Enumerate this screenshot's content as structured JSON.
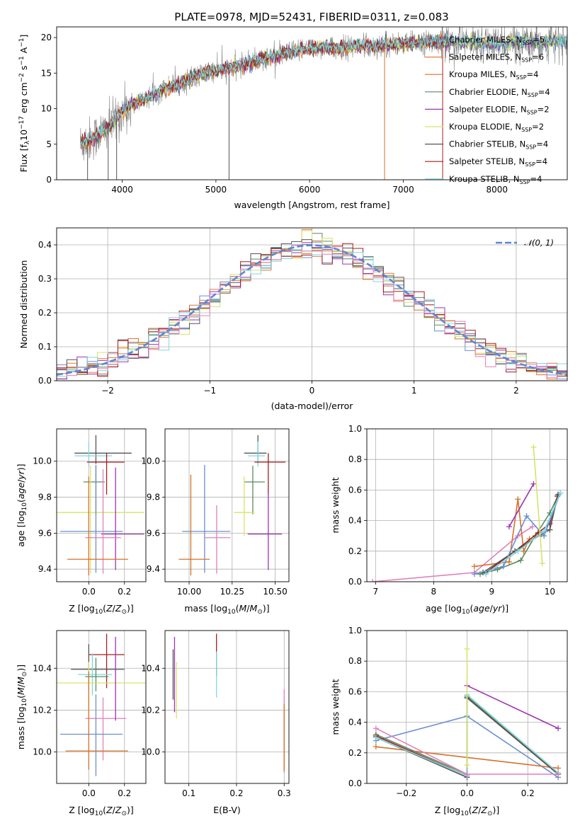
{
  "title": "PLATE=0978, MJD=52431, FIBERID=0311, z=0.083",
  "colors": {
    "chabrier_miles": "#6a8fd0",
    "salpeter_miles": "#e9763a",
    "kroupa_miles": "#d4722a",
    "chabrier_elodie": "#5a8a5e",
    "salpeter_elodie": "#9d35b3",
    "kroupa_elodie": "#d8e36a",
    "chabrier_stelib": "#555555",
    "salpeter_stelib": "#a31e1e",
    "kroupa_stelib": "#7fd8e0",
    "pink": "#e37fbd",
    "normal": "#5b86d6",
    "data": "#808080",
    "grid": "#b0b0b0"
  },
  "chart_data": [
    {
      "type": "line",
      "id": "spectrum",
      "title": "PLATE=0978, MJD=52431, FIBERID=0311, z=0.083",
      "xlabel": "wavelength [Angstrom, rest frame]",
      "ylabel_main": "Flux [f",
      "ylabel_rest": "10",
      "ylabel_exp": "−17",
      "ylabel_units": " erg cm",
      "xlim": [
        3300,
        8750
      ],
      "ylim": [
        0,
        21.5
      ],
      "xticks": [
        4000,
        5000,
        6000,
        7000,
        8000
      ],
      "yticks": [
        0,
        5,
        10,
        15,
        20
      ],
      "grid": false,
      "legend_position": "right",
      "continuum": [
        [
          3550,
          5
        ],
        [
          3700,
          6
        ],
        [
          3800,
          6.8
        ],
        [
          3900,
          8
        ],
        [
          4000,
          9.6
        ],
        [
          4100,
          10.5
        ],
        [
          4200,
          11
        ],
        [
          4300,
          11.8
        ],
        [
          4400,
          12.5
        ],
        [
          4500,
          13
        ],
        [
          4700,
          14
        ],
        [
          4900,
          15
        ],
        [
          5100,
          15.6
        ],
        [
          5300,
          16.2
        ],
        [
          5500,
          17
        ],
        [
          5700,
          17.6
        ],
        [
          5900,
          18.2
        ],
        [
          6100,
          18.6
        ],
        [
          6300,
          18.5
        ],
        [
          6500,
          18.8
        ],
        [
          6700,
          18.8
        ],
        [
          6900,
          19
        ],
        [
          7100,
          19.2
        ],
        [
          7300,
          19.4
        ],
        [
          7500,
          19.5
        ],
        [
          7700,
          19.3
        ],
        [
          7900,
          19.1
        ],
        [
          8100,
          19.0
        ],
        [
          8300,
          19.6
        ],
        [
          8500,
          19.4
        ],
        [
          8700,
          19.5
        ]
      ],
      "legend": [
        {
          "label": "Chabrier MILES, N",
          "sub": "SSP",
          "n": "=5",
          "color": "#6a8fd0"
        },
        {
          "label": "Salpeter MILES, N",
          "sub": "SSP",
          "n": "=6",
          "color": "#e9763a"
        },
        {
          "label": "Kroupa MILES, N",
          "sub": "SSP",
          "n": "=4",
          "color": "#d4722a"
        },
        {
          "label": "Chabrier ELODIE, N",
          "sub": "SSP",
          "n": "=4",
          "color": "#5a8a5e"
        },
        {
          "label": "Salpeter ELODIE, N",
          "sub": "SSP",
          "n": "=2",
          "color": "#9d35b3"
        },
        {
          "label": "Kroupa ELODIE, N",
          "sub": "SSP",
          "n": "=2",
          "color": "#d8e36a"
        },
        {
          "label": "Chabrier STELIB, N",
          "sub": "SSP",
          "n": "=4",
          "color": "#555555"
        },
        {
          "label": "Salpeter STELIB, N",
          "sub": "SSP",
          "n": "=4",
          "color": "#a31e1e"
        },
        {
          "label": "Kroupa STELIB, N",
          "sub": "SSP",
          "n": "=4",
          "color": "#7fd8e0"
        }
      ]
    },
    {
      "type": "line",
      "id": "residuals",
      "xlabel": "(data-model)/error",
      "ylabel": "Normed distribution",
      "xlim": [
        -2.5,
        2.5
      ],
      "ylim": [
        0,
        0.45
      ],
      "xticks": [
        -2,
        -1,
        0,
        1,
        2
      ],
      "yticks": [
        0.0,
        0.1,
        0.2,
        0.3,
        0.4
      ],
      "grid": true,
      "legend": [
        {
          "label": "𝒩(0, 1)",
          "color": "#5b86d6"
        }
      ],
      "legend_position": "top-right"
    },
    {
      "type": "scatter",
      "id": "age_vs_Z",
      "xlabel": "Z [log10(Z/Z⊙)]",
      "ylabel": "age  [log10(age/yr)]",
      "xlim": [
        -0.18,
        0.32
      ],
      "ylim": [
        9.33,
        10.18
      ],
      "xticks": [
        0.0,
        0.2
      ],
      "yticks": [
        9.4,
        9.6,
        9.8,
        10.0
      ],
      "points": [
        {
          "x": 0.04,
          "y": 10.045,
          "xl": 0.12,
          "xh": 0.2,
          "yl": 0.06,
          "yh": 0.1,
          "color": "#555555"
        },
        {
          "x": 0.0,
          "y": 10.03,
          "xl": 0.08,
          "xh": 0.13,
          "yl": 0.06,
          "yh": 0.08,
          "color": "#7fd8e0"
        },
        {
          "x": 0.1,
          "y": 9.995,
          "xl": 0.11,
          "xh": 0.1,
          "yl": 0.18,
          "yh": 0.05,
          "color": "#a31e1e"
        },
        {
          "x": 0.04,
          "y": 9.885,
          "xl": 0.07,
          "xh": 0.05,
          "yl": 0.18,
          "yh": 0.09,
          "color": "#5a8a5e"
        },
        {
          "x": 0.01,
          "y": 9.715,
          "xl": 0.2,
          "xh": 0.3,
          "yl": 0.34,
          "yh": 0.26,
          "color": "#d8e36a"
        },
        {
          "x": 0.04,
          "y": 9.61,
          "xl": 0.2,
          "xh": 0.15,
          "yl": 0.23,
          "yh": 0.37,
          "color": "#6a8fd0"
        },
        {
          "x": 0.15,
          "y": 9.595,
          "xl": 0.08,
          "xh": 0.16,
          "yl": 0.2,
          "yh": 0.37,
          "color": "#9d35b3"
        },
        {
          "x": 0.08,
          "y": 9.575,
          "xl": 0.1,
          "xh": 0.1,
          "yl": 0.2,
          "yh": 0.38,
          "color": "#e37fbd"
        },
        {
          "x": 0.0,
          "y": 9.455,
          "xl": 0.12,
          "xh": 0.22,
          "yl": 0.09,
          "yh": 0.46,
          "color": "#d4722a"
        }
      ]
    },
    {
      "type": "scatter",
      "id": "age_vs_mass",
      "xlabel": "mass [log10(M/M⊙)]",
      "xlim": [
        9.86,
        10.58
      ],
      "ylim": [
        9.33,
        10.18
      ],
      "xticks": [
        10.0,
        10.25,
        10.5
      ],
      "yticks": [
        9.4,
        9.6,
        9.8,
        10.0
      ],
      "points": [
        {
          "x": 10.4,
          "y": 10.045,
          "xl": 0.08,
          "xh": 0.05,
          "yl": 0.06,
          "yh": 0.1,
          "color": "#555555"
        },
        {
          "x": 10.4,
          "y": 10.03,
          "xl": 0.06,
          "xh": 0.04,
          "yl": 0.06,
          "yh": 0.08,
          "color": "#7fd8e0"
        },
        {
          "x": 10.46,
          "y": 9.995,
          "xl": 0.08,
          "xh": 0.1,
          "yl": 0.18,
          "yh": 0.05,
          "color": "#a31e1e"
        },
        {
          "x": 10.37,
          "y": 9.885,
          "xl": 0.05,
          "xh": 0.07,
          "yl": 0.18,
          "yh": 0.09,
          "color": "#5a8a5e"
        },
        {
          "x": 10.32,
          "y": 9.715,
          "xl": 0.06,
          "xh": 0.06,
          "yl": 0.13,
          "yh": 0.2,
          "color": "#d8e36a"
        },
        {
          "x": 10.09,
          "y": 9.61,
          "xl": 0.13,
          "xh": 0.15,
          "yl": 0.23,
          "yh": 0.37,
          "color": "#6a8fd0"
        },
        {
          "x": 10.46,
          "y": 9.595,
          "xl": 0.12,
          "xh": 0.08,
          "yl": 0.2,
          "yh": 0.23,
          "color": "#9d35b3"
        },
        {
          "x": 10.16,
          "y": 9.575,
          "xl": 0.07,
          "xh": 0.08,
          "yl": 0.2,
          "yh": 0.18,
          "color": "#e37fbd"
        },
        {
          "x": 10.01,
          "y": 9.455,
          "xl": 0.07,
          "xh": 0.11,
          "yl": 0.09,
          "yh": 0.47,
          "color": "#d4722a"
        }
      ]
    },
    {
      "type": "line",
      "id": "weight_vs_age",
      "xlabel": "age  [log10(age/yr)]",
      "ylabel": "mass weight",
      "xlim": [
        6.85,
        10.3
      ],
      "ylim": [
        0,
        1.0
      ],
      "xticks": [
        7,
        8,
        9,
        10
      ],
      "yticks": [
        0.0,
        0.2,
        0.4,
        0.6,
        0.8,
        1.0
      ],
      "grid": true,
      "series": [
        {
          "color": "#e37fbd",
          "points": [
            [
              6.95,
              0.0
            ],
            [
              8.7,
              0.06
            ],
            [
              9.45,
              0.3
            ],
            [
              9.7,
              0.36
            ]
          ]
        },
        {
          "color": "#d4722a",
          "points": [
            [
              8.7,
              0.1
            ],
            [
              9.3,
              0.13
            ],
            [
              9.45,
              0.54
            ],
            [
              9.55,
              0.2
            ],
            [
              9.65,
              0.28
            ]
          ]
        },
        {
          "color": "#5a8a5e",
          "points": [
            [
              8.8,
              0.05
            ],
            [
              9.1,
              0.08
            ],
            [
              9.5,
              0.14
            ],
            [
              9.75,
              0.3
            ],
            [
              10.0,
              0.45
            ],
            [
              10.15,
              0.57
            ]
          ]
        },
        {
          "color": "#a31e1e",
          "points": [
            [
              8.9,
              0.06
            ],
            [
              9.4,
              0.2
            ],
            [
              9.8,
              0.32
            ],
            [
              10.0,
              0.38
            ],
            [
              10.13,
              0.56
            ]
          ]
        },
        {
          "color": "#555555",
          "points": [
            [
              8.85,
              0.06
            ],
            [
              9.4,
              0.2
            ],
            [
              9.85,
              0.31
            ],
            [
              10.0,
              0.34
            ],
            [
              10.14,
              0.57
            ]
          ]
        },
        {
          "color": "#6a8fd0",
          "points": [
            [
              8.7,
              0.05
            ],
            [
              9.2,
              0.1
            ],
            [
              9.6,
              0.43
            ],
            [
              9.9,
              0.3
            ],
            [
              10.18,
              0.58
            ]
          ]
        },
        {
          "color": "#7fd8e0",
          "points": [
            [
              8.9,
              0.05
            ],
            [
              9.45,
              0.2
            ],
            [
              9.9,
              0.33
            ],
            [
              10.18,
              0.58
            ]
          ]
        },
        {
          "color": "#9d35b3",
          "points": [
            [
              9.3,
              0.36
            ],
            [
              9.72,
              0.64
            ]
          ]
        },
        {
          "color": "#d8e36a",
          "points": [
            [
              9.72,
              0.88
            ],
            [
              9.87,
              0.12
            ]
          ]
        }
      ]
    },
    {
      "type": "scatter",
      "id": "mass_vs_Z",
      "xlabel": "Z [log10(Z/Z⊙)]",
      "ylabel": "mass [log10(M/M⊙)]",
      "xlim": [
        -0.18,
        0.32
      ],
      "ylim": [
        9.85,
        10.58
      ],
      "xticks": [
        0.0,
        0.2
      ],
      "yticks": [
        10.0,
        10.2,
        10.4
      ],
      "points": [
        {
          "x": 0.1,
          "y": 10.465,
          "xl": 0.1,
          "xh": 0.1,
          "yl": 0.16,
          "yh": 0.1,
          "color": "#a31e1e"
        },
        {
          "x": 0.0,
          "y": 10.395,
          "xl": 0.1,
          "xh": 0.2,
          "yl": 0.1,
          "yh": 0.12,
          "color": "#555555"
        },
        {
          "x": 0.02,
          "y": 10.37,
          "xl": 0.08,
          "xh": 0.11,
          "yl": 0.1,
          "yh": 0.1,
          "color": "#7fd8e0"
        },
        {
          "x": 0.04,
          "y": 10.36,
          "xl": 0.06,
          "xh": 0.07,
          "yl": 0.07,
          "yh": 0.09,
          "color": "#5a8a5e"
        },
        {
          "x": 0.0,
          "y": 10.33,
          "xl": 0.2,
          "xh": 0.32,
          "yl": 0.17,
          "yh": 0.1,
          "color": "#d8e36a"
        },
        {
          "x": 0.08,
          "y": 10.16,
          "xl": 0.1,
          "xh": 0.13,
          "yl": 0.2,
          "yh": 0.1,
          "color": "#e37fbd"
        },
        {
          "x": 0.04,
          "y": 10.085,
          "xl": 0.2,
          "xh": 0.15,
          "yl": 0.2,
          "yh": 0.19,
          "color": "#6a8fd0"
        },
        {
          "x": 0.0,
          "y": 10.005,
          "xl": 0.13,
          "xh": 0.22,
          "yl": 0.09,
          "yh": 0.38,
          "color": "#d4722a"
        },
        {
          "x": 0.15,
          "y": 10.35,
          "xl": 0.0,
          "xh": 0.0,
          "yl": 0.2,
          "yh": 0.2,
          "color": "#9d35b3"
        }
      ]
    },
    {
      "type": "scatter",
      "id": "mass_vs_EBV",
      "xlabel": "E(B-V)",
      "xlim": [
        0.05,
        0.31
      ],
      "ylim": [
        9.85,
        10.58
      ],
      "xticks": [
        0.1,
        0.2,
        0.3
      ],
      "yticks": [
        10.0,
        10.2,
        10.4
      ],
      "points": [
        {
          "x": 0.067,
          "y": 10.37,
          "xl": 0,
          "xh": 0,
          "yl": 0.12,
          "yh": 0.12,
          "color": "#555555"
        },
        {
          "x": 0.07,
          "y": 10.37,
          "xl": 0,
          "xh": 0,
          "yl": 0.18,
          "yh": 0.18,
          "color": "#9d35b3"
        },
        {
          "x": 0.074,
          "y": 10.33,
          "xl": 0,
          "xh": 0,
          "yl": 0.17,
          "yh": 0.1,
          "color": "#d8e36a"
        },
        {
          "x": 0.158,
          "y": 10.465,
          "xl": 0,
          "xh": 0,
          "yl": 0.1,
          "yh": 0.1,
          "color": "#a31e1e"
        },
        {
          "x": 0.158,
          "y": 10.36,
          "xl": 0,
          "xh": 0,
          "yl": 0.1,
          "yh": 0.12,
          "color": "#7fd8e0"
        },
        {
          "x": 0.3,
          "y": 10.1,
          "xl": 0,
          "xh": 0,
          "yl": 0.2,
          "yh": 0.2,
          "color": "#e37fbd"
        },
        {
          "x": 0.3,
          "y": 10.06,
          "xl": 0,
          "xh": 0,
          "yl": 0.15,
          "yh": 0.17,
          "color": "#d4722a"
        }
      ]
    },
    {
      "type": "line",
      "id": "weight_vs_Z",
      "xlabel": "Z [log10(Z/Z⊙)]",
      "ylabel": "mass weight",
      "xlim": [
        -0.33,
        0.33
      ],
      "ylim": [
        0,
        1.0
      ],
      "xticks": [
        -0.2,
        0.0,
        0.2
      ],
      "yticks": [
        0.0,
        0.2,
        0.4,
        0.6,
        0.8,
        1.0
      ],
      "grid": true,
      "series": [
        {
          "color": "#9d35b3",
          "points": [
            [
              0.0,
              0.64
            ],
            [
              0.3,
              0.36
            ]
          ]
        },
        {
          "color": "#6a8fd0",
          "points": [
            [
              -0.3,
              0.28
            ],
            [
              0.0,
              0.44
            ],
            [
              0.3,
              0.04
            ]
          ]
        },
        {
          "color": "#d4722a",
          "points": [
            [
              -0.3,
              0.24
            ],
            [
              0.3,
              0.1
            ]
          ]
        },
        {
          "color": "#5a8a5e",
          "points": [
            [
              -0.3,
              0.32
            ],
            [
              0.0,
              0.06
            ],
            [
              0.0,
              0.57
            ],
            [
              0.3,
              0.06
            ]
          ]
        },
        {
          "color": "#a31e1e",
          "points": [
            [
              -0.3,
              0.31
            ],
            [
              0.0,
              0.05
            ],
            [
              0.0,
              0.56
            ],
            [
              0.3,
              0.06
            ]
          ]
        },
        {
          "color": "#555555",
          "points": [
            [
              -0.3,
              0.3
            ],
            [
              0.0,
              0.04
            ],
            [
              0.0,
              0.56
            ],
            [
              0.3,
              0.06
            ]
          ]
        },
        {
          "color": "#7fd8e0",
          "points": [
            [
              -0.3,
              0.3
            ],
            [
              0.0,
              0.05
            ],
            [
              0.0,
              0.58
            ],
            [
              0.3,
              0.07
            ]
          ]
        },
        {
          "color": "#e37fbd",
          "points": [
            [
              -0.3,
              0.36
            ],
            [
              0.0,
              0.06
            ],
            [
              0.3,
              0.06
            ]
          ]
        },
        {
          "color": "#d8e36a",
          "points": [
            [
              0.0,
              0.88
            ],
            [
              0.0,
              0.12
            ]
          ]
        }
      ]
    }
  ]
}
